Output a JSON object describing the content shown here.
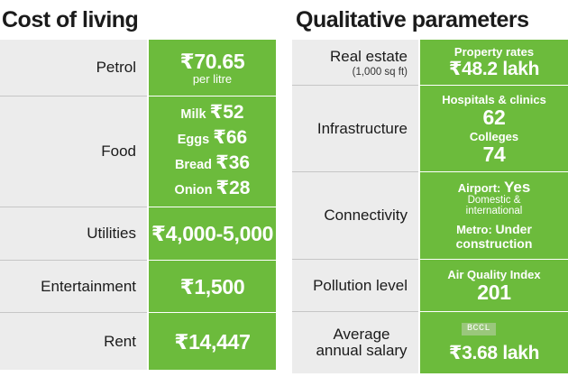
{
  "cost_of_living": {
    "title": "Cost of living",
    "rows": [
      {
        "label": "Petrol",
        "value": "₹70.65",
        "sub": "per litre"
      },
      {
        "label": "Food",
        "items": [
          {
            "name": "Milk",
            "amount": "₹52"
          },
          {
            "name": "Eggs",
            "amount": "₹66"
          },
          {
            "name": "Bread",
            "amount": "₹36"
          },
          {
            "name": "Onion",
            "amount": "₹28"
          }
        ]
      },
      {
        "label": "Utilities",
        "value": "₹4,000-5,000"
      },
      {
        "label": "Entertainment",
        "value": "₹1,500"
      },
      {
        "label": "Rent",
        "value": "₹14,447"
      }
    ]
  },
  "qualitative": {
    "title": "Qualitative parameters",
    "real_estate": {
      "label": "Real estate",
      "sub": "(1,000 sq ft)",
      "caption": "Property rates",
      "value": "₹48.2 lakh"
    },
    "infrastructure": {
      "label": "Infrastructure",
      "hospitals_caption": "Hospitals & clinics",
      "hospitals": "62",
      "colleges_caption": "Colleges",
      "colleges": "74"
    },
    "connectivity": {
      "label": "Connectivity",
      "airport_caption": "Airport:",
      "airport": "Yes",
      "airport_note_1": "Domestic &",
      "airport_note_2": "international",
      "metro_caption": "Metro:",
      "metro_1": "Under",
      "metro_2": "construction"
    },
    "pollution": {
      "label": "Pollution level",
      "caption": "Air Quality Index",
      "value": "201"
    },
    "salary": {
      "label_1": "Average",
      "label_2": "annual salary",
      "value": "₹3.68 lakh"
    }
  },
  "watermark": "BCCL",
  "colors": {
    "accent_green": "#6cbb3c",
    "label_bg": "#ececec"
  }
}
